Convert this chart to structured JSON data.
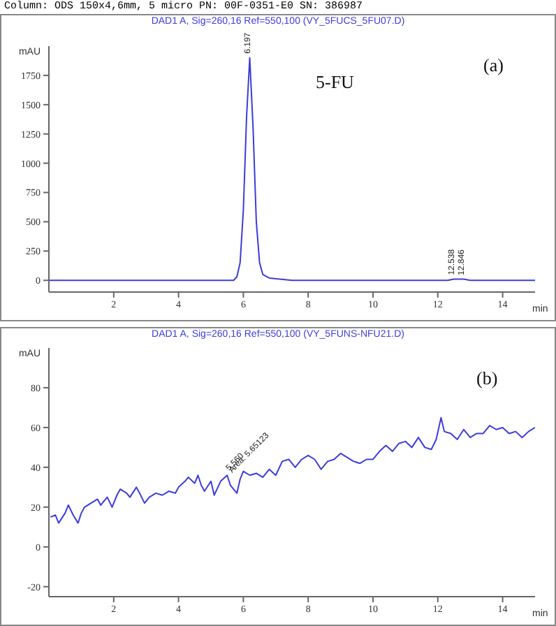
{
  "chart_data": [
    {
      "type": "line",
      "title": "DAD1 A, Sig=260,16 Ref=550,100 (VY_5FUCS_5FU07.D)",
      "xlabel": "min",
      "ylabel": "mAU",
      "annotations": [
        "Column: ODS 150x4,6mm, 5 micro   PN: 00F-0351-E0 SN: 386987",
        "5-FU",
        "(a)",
        {
          "text": "6.197",
          "x": 6.197,
          "y": 1900
        },
        {
          "text": "12.538",
          "x": 12.5,
          "y": 10
        },
        {
          "text": "12.846",
          "x": 12.8,
          "y": 8
        }
      ],
      "x": [
        0,
        5.5,
        5.7,
        5.8,
        5.9,
        6.0,
        6.1,
        6.197,
        6.3,
        6.4,
        6.5,
        6.6,
        6.8,
        7.5,
        9,
        12.3,
        12.5,
        12.8,
        13.0,
        15
      ],
      "series": [
        {
          "color": "#3c3cdc",
          "values": [
            0,
            0,
            0,
            30,
            150,
            600,
            1400,
            1900,
            1300,
            500,
            150,
            50,
            20,
            0,
            0,
            0,
            10,
            10,
            0,
            0
          ]
        }
      ],
      "xlim": [
        0,
        15
      ],
      "xticks": [
        2,
        4,
        6,
        8,
        10,
        12,
        14
      ],
      "ylim": [
        -100,
        2000
      ],
      "yticks": [
        0,
        250,
        500,
        750,
        1000,
        1250,
        1500,
        1750
      ],
      "grid": false,
      "legend": false,
      "marker": "none",
      "line_style": "solid"
    },
    {
      "type": "line",
      "title": "DAD1 A, Sig=260,16 Ref=550,100 (VY_5FUNS-NFU21.D)",
      "xlabel": "min",
      "ylabel": "mAU",
      "annotations": [
        "(b)",
        {
          "text": "5.560",
          "x": 5.56,
          "y": 36
        },
        {
          "text": "Area: 5.65123",
          "x": 5.65,
          "y": 35
        }
      ],
      "x": [
        0.05,
        0.2,
        0.3,
        0.5,
        0.6,
        0.75,
        0.9,
        1.0,
        1.1,
        1.3,
        1.5,
        1.6,
        1.8,
        1.95,
        2.1,
        2.2,
        2.4,
        2.5,
        2.7,
        2.8,
        2.95,
        3.1,
        3.3,
        3.5,
        3.7,
        3.9,
        4.0,
        4.2,
        4.3,
        4.5,
        4.6,
        4.7,
        4.8,
        5.0,
        5.1,
        5.3,
        5.5,
        5.6,
        5.8,
        5.9,
        6.0,
        6.2,
        6.4,
        6.6,
        6.8,
        7.0,
        7.2,
        7.4,
        7.6,
        7.8,
        8.0,
        8.2,
        8.4,
        8.6,
        8.8,
        9.0,
        9.2,
        9.4,
        9.6,
        9.8,
        10.0,
        10.2,
        10.4,
        10.6,
        10.8,
        11.0,
        11.2,
        11.4,
        11.6,
        11.8,
        11.95,
        12.1,
        12.2,
        12.4,
        12.6,
        12.8,
        13.0,
        13.2,
        13.4,
        13.6,
        13.8,
        14.0,
        14.2,
        14.4,
        14.6,
        14.8,
        15.0
      ],
      "series": [
        {
          "color": "#3c3cdc",
          "values": [
            15,
            16,
            12,
            17,
            21,
            16,
            12,
            17,
            20,
            22,
            24,
            21,
            25,
            20,
            26,
            29,
            27,
            25,
            30,
            27,
            22,
            25,
            27,
            26,
            28,
            27,
            30,
            33,
            35,
            32,
            36,
            31,
            28,
            33,
            26,
            33,
            36,
            31,
            27,
            34,
            38,
            36,
            37,
            35,
            39,
            36,
            43,
            44,
            40,
            44,
            46,
            44,
            39,
            43,
            44,
            47,
            45,
            43,
            42,
            44,
            44,
            48,
            51,
            48,
            52,
            53,
            50,
            55,
            50,
            49,
            54,
            65,
            58,
            57,
            54,
            59,
            55,
            57,
            57,
            61,
            59,
            60,
            57,
            58,
            55,
            58,
            60
          ]
        }
      ],
      "xlim": [
        0,
        15
      ],
      "xticks": [
        2,
        4,
        6,
        8,
        10,
        12,
        14
      ],
      "ylim": [
        -25,
        100
      ],
      "yticks": [
        -20,
        0,
        20,
        40,
        60,
        80
      ],
      "grid": false,
      "legend": false,
      "marker": "none",
      "line_style": "solid"
    }
  ]
}
